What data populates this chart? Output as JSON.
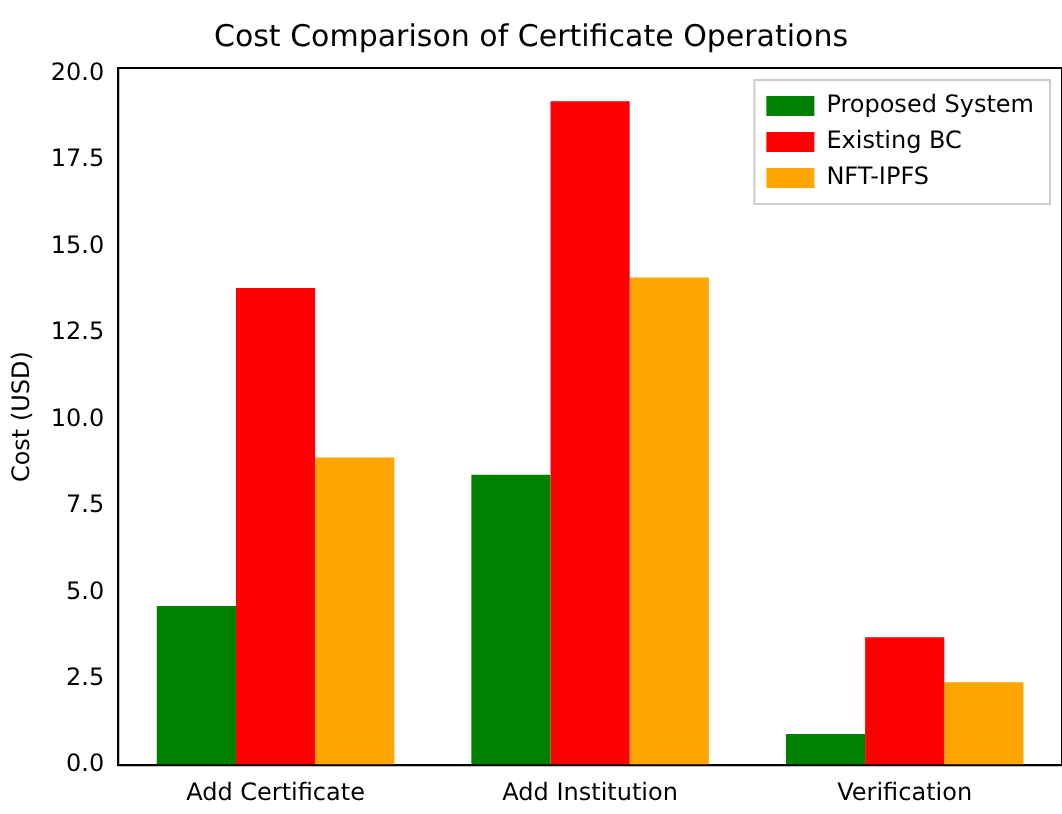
{
  "chart_data": {
    "type": "bar",
    "title": "Cost Comparison of Certificate Operations",
    "ylabel": "Cost (USD)",
    "categories": [
      "Add Certificate",
      "Add Institution",
      "Verification"
    ],
    "series": [
      {
        "name": "Proposed System",
        "color": "#008000",
        "values": [
          4.6,
          8.4,
          0.9
        ]
      },
      {
        "name": "Existing BC",
        "color": "#ff0000",
        "values": [
          13.8,
          19.2,
          3.7
        ]
      },
      {
        "name": "NFT-IPFS",
        "color": "#ffa500",
        "values": [
          8.9,
          14.1,
          2.4
        ]
      }
    ],
    "ylim": [
      0,
      20.16
    ],
    "yticks": [
      {
        "value": 0,
        "label": "0.0"
      },
      {
        "value": 2.5,
        "label": "2.5"
      },
      {
        "value": 5,
        "label": "5.0"
      },
      {
        "value": 7.5,
        "label": "7.5"
      },
      {
        "value": 10,
        "label": "10.0"
      },
      {
        "value": 12.5,
        "label": "12.5"
      },
      {
        "value": 15,
        "label": "15.0"
      },
      {
        "value": 17.5,
        "label": "17.5"
      },
      {
        "value": 20,
        "label": "20.0"
      }
    ],
    "grid": false,
    "legend": "top right"
  }
}
